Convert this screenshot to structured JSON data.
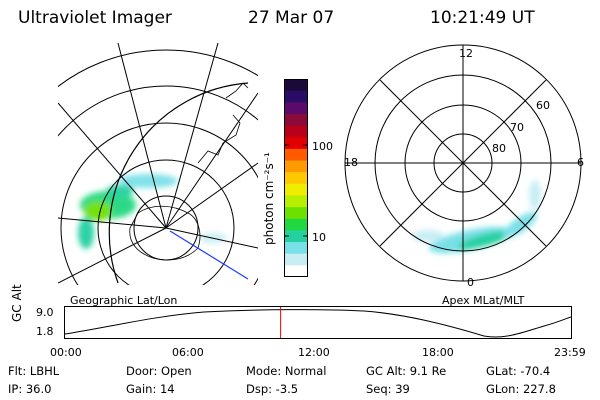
{
  "header": {
    "title": "Ultraviolet Imager",
    "date": "27 Mar 07",
    "time": "10:21:49 UT"
  },
  "left_panel": {
    "caption": "Geographic Lat/Lon"
  },
  "right_panel": {
    "caption": "Apex MLat/MLT",
    "mlt_labels": [
      "12",
      "18",
      "6",
      "0"
    ],
    "mlat_labels": [
      "60",
      "70",
      "80"
    ]
  },
  "colorbar": {
    "unit_label": "photon cm⁻²s⁻¹",
    "tick_labels": [
      "100",
      "10"
    ],
    "colors": [
      "#1a0a3a",
      "#2a0c66",
      "#5a0a6a",
      "#8a0a3a",
      "#b8001a",
      "#e30000",
      "#ff5a00",
      "#ff9a00",
      "#ffc800",
      "#f0ee00",
      "#b8ee00",
      "#6ee000",
      "#22d840",
      "#22d0a0",
      "#7ae0e8",
      "#c8eef4",
      "#ffffff"
    ]
  },
  "timeline": {
    "axis_label": "GC Alt",
    "y_ticks": [
      "9.0",
      "1.8"
    ],
    "x_ticks": [
      "00:00",
      "06:00",
      "12:00",
      "18:00",
      "23:59"
    ],
    "current_time_fraction": 0.426
  },
  "info": {
    "filter": "Flt: LBHL",
    "ip": "IP: 36.0",
    "door": "Door: Open",
    "gain": "Gain: 14",
    "mode": "Mode: Normal",
    "dsp": "Dsp:    -3.5",
    "gc_alt": "GC Alt: 9.1 Re",
    "seq": "Seq: 39",
    "glat": "GLat: -70.4",
    "glon": "GLon: 227.8"
  }
}
